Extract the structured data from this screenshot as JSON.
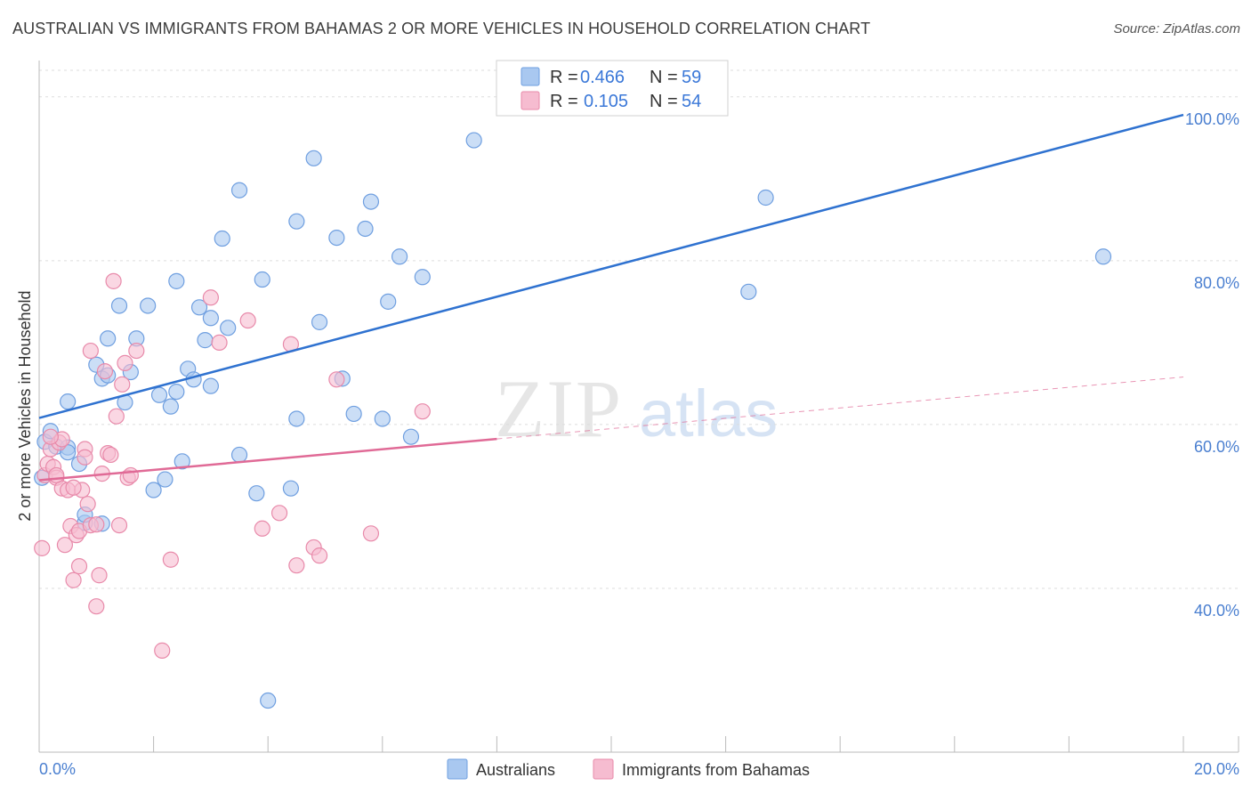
{
  "chart_data": {
    "type": "scatter",
    "title": "AUSTRALIAN VS IMMIGRANTS FROM BAHAMAS 2 OR MORE VEHICLES IN HOUSEHOLD CORRELATION CHART",
    "source": "Source: ZipAtlas.com",
    "xlabel": "",
    "ylabel": "2 or more Vehicles in Household",
    "xlim": [
      0,
      20
    ],
    "ylim": [
      20,
      104
    ],
    "x_tick_labels": [
      {
        "value": 0,
        "label": "0.0%"
      },
      {
        "value": 20,
        "label": "20.0%"
      }
    ],
    "y_tick_labels": [
      {
        "value": 40,
        "label": "40.0%"
      },
      {
        "value": 60,
        "label": "60.0%"
      },
      {
        "value": 80,
        "label": "80.0%"
      },
      {
        "value": 100,
        "label": "100.0%"
      }
    ],
    "watermark": {
      "zip": "ZIP",
      "atlas": "atlas"
    },
    "legend_top": [
      {
        "r_label": "R =",
        "r_value": "0.466",
        "n_label": "N =",
        "n_value": "59"
      },
      {
        "r_label": "R =",
        "r_value": "0.105",
        "n_label": "N =",
        "n_value": "54"
      }
    ],
    "series": [
      {
        "name": "Australians",
        "color": "#a9c8f0",
        "stroke": "#6f9fe0",
        "line_color": "#2f72d0",
        "trend": {
          "x0": 0,
          "y0": 60.8,
          "x1": 20,
          "y1": 97.8,
          "dashed_from": null
        },
        "points": [
          [
            0.1,
            57.9
          ],
          [
            0.2,
            59.2
          ],
          [
            0.3,
            57.3
          ],
          [
            0.5,
            57.2
          ],
          [
            0.5,
            62.8
          ],
          [
            0.5,
            56.6
          ],
          [
            0.7,
            55.2
          ],
          [
            0.8,
            48.0
          ],
          [
            0.8,
            49.0
          ],
          [
            1.0,
            67.3
          ],
          [
            1.1,
            65.6
          ],
          [
            1.2,
            66.0
          ],
          [
            1.2,
            70.5
          ],
          [
            1.4,
            74.5
          ],
          [
            1.5,
            62.7
          ],
          [
            1.6,
            66.4
          ],
          [
            1.7,
            70.5
          ],
          [
            1.9,
            74.5
          ],
          [
            2.0,
            52.0
          ],
          [
            2.1,
            63.6
          ],
          [
            2.2,
            53.3
          ],
          [
            2.3,
            62.2
          ],
          [
            2.4,
            64.0
          ],
          [
            2.4,
            77.5
          ],
          [
            2.5,
            55.5
          ],
          [
            2.6,
            66.8
          ],
          [
            2.7,
            65.5
          ],
          [
            2.8,
            74.3
          ],
          [
            2.9,
            70.3
          ],
          [
            3.0,
            64.7
          ],
          [
            3.0,
            73.0
          ],
          [
            3.2,
            82.7
          ],
          [
            3.3,
            71.8
          ],
          [
            3.5,
            88.6
          ],
          [
            3.5,
            56.3
          ],
          [
            3.8,
            51.6
          ],
          [
            3.9,
            77.7
          ],
          [
            4.0,
            26.3
          ],
          [
            4.4,
            52.2
          ],
          [
            4.5,
            84.8
          ],
          [
            4.5,
            60.7
          ],
          [
            4.8,
            92.5
          ],
          [
            4.9,
            72.5
          ],
          [
            5.2,
            82.8
          ],
          [
            5.3,
            65.6
          ],
          [
            5.5,
            61.3
          ],
          [
            5.7,
            83.9
          ],
          [
            5.8,
            87.2
          ],
          [
            6.0,
            60.7
          ],
          [
            6.1,
            75.0
          ],
          [
            6.3,
            80.5
          ],
          [
            6.5,
            58.5
          ],
          [
            6.7,
            78.0
          ],
          [
            7.6,
            94.7
          ],
          [
            12.4,
            76.2
          ],
          [
            12.7,
            87.7
          ],
          [
            18.6,
            80.5
          ],
          [
            0.05,
            53.5
          ],
          [
            1.1,
            47.9
          ]
        ]
      },
      {
        "name": "Immigrants from Bahamas",
        "color": "#f6bcd0",
        "stroke": "#e88aaa",
        "line_color": "#e06a96",
        "trend": {
          "x0": 0,
          "y0": 53.2,
          "x1": 20,
          "y1": 65.8,
          "dashed_from": 8.0
        },
        "points": [
          [
            0.05,
            44.9
          ],
          [
            0.1,
            53.8
          ],
          [
            0.15,
            55.2
          ],
          [
            0.2,
            57.0
          ],
          [
            0.25,
            54.8
          ],
          [
            0.3,
            53.5
          ],
          [
            0.35,
            57.8
          ],
          [
            0.4,
            52.2
          ],
          [
            0.4,
            58.2
          ],
          [
            0.45,
            45.3
          ],
          [
            0.5,
            52.0
          ],
          [
            0.55,
            47.6
          ],
          [
            0.6,
            41.0
          ],
          [
            0.65,
            46.5
          ],
          [
            0.7,
            47.0
          ],
          [
            0.7,
            42.7
          ],
          [
            0.75,
            52.0
          ],
          [
            0.8,
            57.0
          ],
          [
            0.85,
            50.3
          ],
          [
            0.9,
            69.0
          ],
          [
            0.9,
            47.7
          ],
          [
            1.0,
            37.8
          ],
          [
            1.05,
            41.6
          ],
          [
            1.1,
            54.0
          ],
          [
            1.15,
            66.5
          ],
          [
            1.2,
            56.5
          ],
          [
            1.25,
            56.3
          ],
          [
            1.3,
            77.5
          ],
          [
            1.35,
            61.0
          ],
          [
            1.4,
            47.7
          ],
          [
            1.45,
            64.9
          ],
          [
            1.5,
            67.5
          ],
          [
            1.55,
            53.5
          ],
          [
            1.6,
            53.8
          ],
          [
            1.7,
            69.0
          ],
          [
            2.15,
            32.4
          ],
          [
            2.3,
            43.5
          ],
          [
            3.0,
            75.5
          ],
          [
            3.15,
            70.0
          ],
          [
            3.65,
            72.7
          ],
          [
            3.9,
            47.3
          ],
          [
            4.2,
            49.2
          ],
          [
            4.4,
            69.8
          ],
          [
            4.5,
            42.8
          ],
          [
            4.8,
            45.0
          ],
          [
            4.9,
            44.0
          ],
          [
            5.2,
            65.5
          ],
          [
            5.8,
            46.7
          ],
          [
            6.7,
            61.6
          ],
          [
            0.2,
            58.5
          ],
          [
            0.3,
            53.8
          ],
          [
            0.6,
            52.3
          ],
          [
            0.8,
            56.0
          ],
          [
            1.0,
            47.8
          ]
        ]
      }
    ]
  }
}
